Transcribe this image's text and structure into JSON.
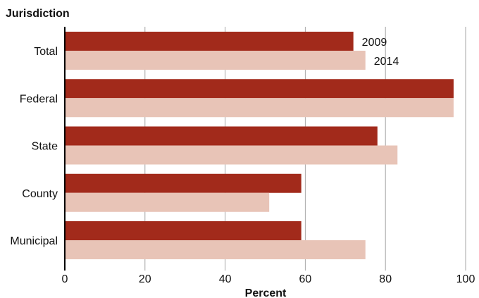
{
  "chart_data": {
    "type": "bar",
    "orientation": "horizontal",
    "categories": [
      "Total",
      "Federal",
      "State",
      "County",
      "Municipal"
    ],
    "series": [
      {
        "name": "2009",
        "values": [
          72,
          97,
          78,
          59,
          59
        ],
        "color": "#a22a1b"
      },
      {
        "name": "2014",
        "values": [
          75,
          97,
          83,
          51,
          75
        ],
        "color": "#e8c4b7"
      }
    ],
    "xlabel": "Percent",
    "ylabel": "Jurisdiction",
    "xlim": [
      0,
      100
    ],
    "xticks": [
      0,
      20,
      40,
      60,
      80,
      100
    ],
    "grid": true,
    "legend": "inline-labels-on-first-category"
  }
}
